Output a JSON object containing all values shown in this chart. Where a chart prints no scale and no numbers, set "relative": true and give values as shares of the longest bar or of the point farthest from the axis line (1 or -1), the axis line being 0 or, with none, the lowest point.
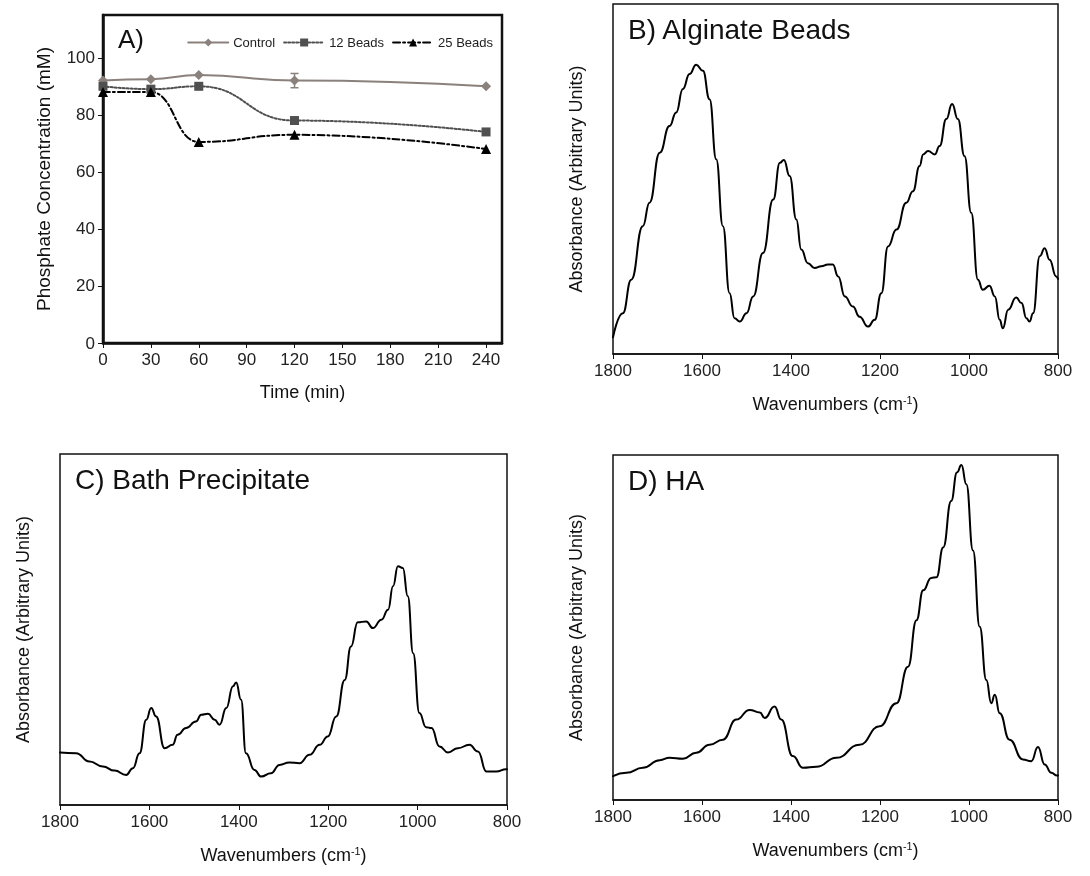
{
  "chart_data": [
    {
      "type": "line",
      "title": "A)",
      "xlabel": "Time (min)",
      "ylabel": "Phosphate Concentration (mM)",
      "x": [
        0,
        30,
        60,
        120,
        240
      ],
      "xlim": [
        0,
        250
      ],
      "xticks": [
        0,
        30,
        60,
        90,
        120,
        150,
        180,
        210,
        240
      ],
      "ylim": [
        0,
        115
      ],
      "yticks": [
        0,
        20,
        40,
        60,
        80,
        100
      ],
      "legend": "top right",
      "series": [
        {
          "name": "Control",
          "color": "#8a817c",
          "marker": "diamond",
          "line_style": "solid",
          "values": [
            92,
            92.5,
            94,
            92,
            90
          ],
          "errors": [
            null,
            null,
            null,
            2.5,
            null
          ]
        },
        {
          "name": "12 Beads",
          "color": "#505050",
          "marker": "square",
          "line_style": "dotted",
          "values": [
            90,
            89,
            90,
            78,
            74
          ]
        },
        {
          "name": "25 Beads",
          "color": "#000000",
          "marker": "triangle",
          "line_style": "dashed",
          "values": [
            88,
            88,
            70.5,
            73,
            68
          ]
        }
      ]
    },
    {
      "type": "line",
      "title": "B) Alginate Beads",
      "xlabel": "Wavenumbers (cm$^{-1}$)",
      "ylabel": "Absorbance (Arbitrary Units)",
      "relative": true,
      "xlim": [
        1800,
        800
      ],
      "xticks": [
        1800,
        1600,
        1400,
        1200,
        1000,
        800
      ],
      "marker": "none",
      "line_style": "solid",
      "series": [
        {
          "color": "#000000",
          "x": [
            1800,
            1778,
            1759,
            1733,
            1718,
            1695,
            1673,
            1658,
            1643,
            1628,
            1613,
            1598,
            1583,
            1568,
            1553,
            1538,
            1527,
            1515,
            1500,
            1485,
            1463,
            1440,
            1425,
            1416,
            1403,
            1388,
            1377,
            1362,
            1347,
            1332,
            1317,
            1306,
            1294,
            1279,
            1261,
            1246,
            1227,
            1212,
            1197,
            1182,
            1163,
            1141,
            1126,
            1111,
            1103,
            1092,
            1077,
            1066,
            1051,
            1038,
            1025,
            1010,
            995,
            980,
            969,
            954,
            942,
            931,
            924,
            912,
            894,
            882,
            871,
            864,
            856,
            841,
            830,
            819,
            804,
            800
          ],
          "values": [
            0.058,
            0.141,
            0.257,
            0.442,
            0.523,
            0.696,
            0.788,
            0.835,
            0.916,
            0.968,
            1.0,
            0.979,
            0.881,
            0.673,
            0.442,
            0.21,
            0.124,
            0.112,
            0.141,
            0.199,
            0.349,
            0.534,
            0.661,
            0.671,
            0.615,
            0.465,
            0.361,
            0.314,
            0.297,
            0.303,
            0.309,
            0.309,
            0.268,
            0.199,
            0.164,
            0.129,
            0.095,
            0.118,
            0.21,
            0.372,
            0.43,
            0.523,
            0.563,
            0.65,
            0.69,
            0.702,
            0.69,
            0.719,
            0.812,
            0.864,
            0.812,
            0.684,
            0.488,
            0.257,
            0.222,
            0.236,
            0.199,
            0.118,
            0.089,
            0.153,
            0.195,
            0.176,
            0.124,
            0.112,
            0.141,
            0.338,
            0.366,
            0.326,
            0.268,
            0.26
          ]
        }
      ]
    },
    {
      "type": "line",
      "title": "C) Bath Precipitate",
      "xlabel": "Wavenumbers (cm$^{-1}$)",
      "ylabel": "Absorbance (Arbitrary Units)",
      "relative": true,
      "xlim": [
        1800,
        800
      ],
      "xticks": [
        1800,
        1600,
        1400,
        1200,
        1000,
        800
      ],
      "marker": "none",
      "line_style": "solid",
      "series": [
        {
          "color": "#000000",
          "x": [
            1800,
            1764,
            1734,
            1704,
            1678,
            1652,
            1637,
            1622,
            1607,
            1596,
            1585,
            1566,
            1548,
            1537,
            1518,
            1496,
            1484,
            1469,
            1454,
            1443,
            1428,
            1413,
            1406,
            1395,
            1384,
            1365,
            1350,
            1328,
            1309,
            1287,
            1264,
            1242,
            1219,
            1201,
            1182,
            1163,
            1149,
            1134,
            1115,
            1100,
            1081,
            1066,
            1055,
            1044,
            1033,
            1022,
            1010,
            996,
            981,
            969,
            951,
            932,
            910,
            884,
            865,
            846,
            824,
            802,
            800
          ],
          "values": [
            0.22,
            0.217,
            0.182,
            0.161,
            0.144,
            0.126,
            0.154,
            0.217,
            0.357,
            0.406,
            0.371,
            0.238,
            0.252,
            0.294,
            0.322,
            0.35,
            0.378,
            0.382,
            0.357,
            0.336,
            0.406,
            0.497,
            0.513,
            0.441,
            0.217,
            0.147,
            0.119,
            0.133,
            0.168,
            0.178,
            0.175,
            0.21,
            0.252,
            0.287,
            0.371,
            0.524,
            0.664,
            0.765,
            0.769,
            0.741,
            0.776,
            0.818,
            0.916,
            1.0,
            0.993,
            0.874,
            0.636,
            0.385,
            0.326,
            0.322,
            0.245,
            0.22,
            0.238,
            0.252,
            0.224,
            0.14,
            0.14,
            0.15,
            0.15
          ]
        }
      ]
    },
    {
      "type": "line",
      "title": "D) HA",
      "xlabel": "Wavenumbers (cm$^{-1}$)",
      "ylabel": "Absorbance (Arbitrary Units)",
      "relative": true,
      "xlim": [
        1800,
        800
      ],
      "xticks": [
        1800,
        1600,
        1400,
        1200,
        1000,
        800
      ],
      "marker": "none",
      "line_style": "solid",
      "series": [
        {
          "color": "#000000",
          "x": [
            1800,
            1770,
            1733,
            1695,
            1673,
            1643,
            1613,
            1583,
            1553,
            1523,
            1493,
            1470,
            1459,
            1437,
            1422,
            1396,
            1373,
            1343,
            1298,
            1246,
            1201,
            1163,
            1137,
            1118,
            1103,
            1085,
            1073,
            1058,
            1040,
            1027,
            1017,
            1006,
            991,
            976,
            961,
            950,
            942,
            931,
            909,
            879,
            860,
            845,
            830,
            815,
            802,
            800
          ],
          "values": [
            0.071,
            0.081,
            0.096,
            0.119,
            0.126,
            0.123,
            0.141,
            0.165,
            0.18,
            0.24,
            0.269,
            0.261,
            0.245,
            0.279,
            0.24,
            0.131,
            0.096,
            0.099,
            0.126,
            0.165,
            0.22,
            0.289,
            0.398,
            0.537,
            0.626,
            0.663,
            0.665,
            0.754,
            0.893,
            0.978,
            1.0,
            0.943,
            0.745,
            0.517,
            0.358,
            0.289,
            0.314,
            0.259,
            0.18,
            0.121,
            0.116,
            0.158,
            0.106,
            0.081,
            0.073,
            0.073
          ]
        }
      ]
    }
  ]
}
